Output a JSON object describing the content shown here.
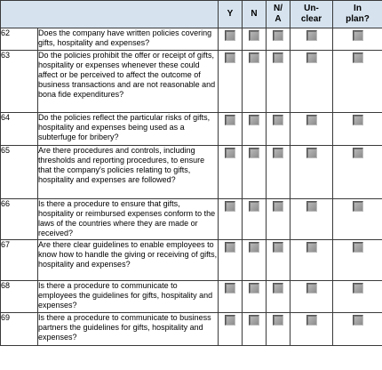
{
  "headers": [
    "Y",
    "N",
    "N/\nA",
    "Un-\nclear",
    "In\nplan?"
  ],
  "rows": [
    {
      "num": "62",
      "question": "Does the company have written policies covering gifts, hospitality and expenses?"
    },
    {
      "num": "63",
      "question": "Do the policies prohibit the offer or receipt of gifts, hospitality or expenses whenever these could affect or be perceived to affect the outcome of business transactions and are not reasonable and bona fide expenditures?"
    },
    {
      "num": "64",
      "question": "Do the policies reflect the particular risks of gifts, hospitality and expenses being used as a subterfuge for bribery?"
    },
    {
      "num": "65",
      "question": "Are there procedures and controls, including thresholds and reporting procedures, to ensure that the company's policies relating to gifts, hospitality and expenses are followed?"
    },
    {
      "num": "66",
      "question": "Is there a procedure to ensure that gifts, hospitality or reimbursed expenses conform to the laws of the countries where they are made or received?"
    },
    {
      "num": "67",
      "question": "Are there clear guidelines to enable employees to know how to handle the giving or receiving of gifts, hospitality and expenses?"
    },
    {
      "num": "68",
      "question": "Is there a procedure to communicate to employees the guidelines for gifts, hospitality and expenses?"
    },
    {
      "num": "69",
      "question": "Is there a procedure to communicate to business partners the guidelines for gifts, hospitality and expenses?"
    }
  ]
}
